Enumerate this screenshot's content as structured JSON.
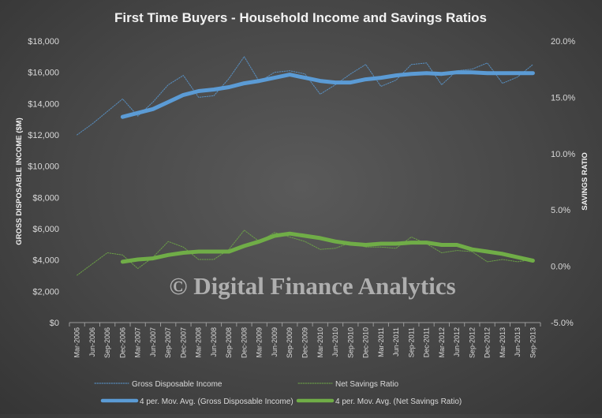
{
  "chart_data": {
    "type": "line",
    "title": "First Time Buyers - Household  Income and Savings Ratios",
    "ylabel": "GROSS DISPOSABLE INCOME ($M)",
    "y2label": "SAVINGS RATIO",
    "ylim": [
      0,
      18000
    ],
    "y2lim": [
      -5,
      20
    ],
    "yticks": [
      "$0",
      "$2,000",
      "$4,000",
      "$6,000",
      "$8,000",
      "$10,000",
      "$12,000",
      "$14,000",
      "$16,000",
      "$18,000"
    ],
    "y2ticks": [
      "-5.0%",
      "0.0%",
      "5.0%",
      "10.0%",
      "15.0%",
      "20.0%"
    ],
    "categories": [
      "Mar-2006",
      "Jun-2006",
      "Sep-2006",
      "Dec-2006",
      "Mar-2007",
      "Jun-2007",
      "Sep-2007",
      "Dec-2007",
      "Mar-2008",
      "Jun-2008",
      "Sep-2008",
      "Dec-2008",
      "Mar-2009",
      "Jun-2009",
      "Sep-2009",
      "Dec-2009",
      "Mar-2010",
      "Jun-2010",
      "Sep-2010",
      "Dec-2010",
      "Mar-2011",
      "Jun-2011",
      "Sep-2011",
      "Dec-2011",
      "Mar-2012",
      "Jun-2012",
      "Sep-2012",
      "Dec-2012",
      "Mar-2013",
      "Jun-2013",
      "Sep-2013"
    ],
    "series": [
      {
        "name": "Gross Disposable Income",
        "axis": "left",
        "style": "dotted",
        "color": "#5b9bd5",
        "values": [
          12000,
          12700,
          13500,
          14300,
          13200,
          14100,
          15200,
          15800,
          14400,
          14500,
          15600,
          17000,
          15400,
          16000,
          16100,
          15900,
          14600,
          15200,
          15900,
          16500,
          15100,
          15500,
          16500,
          16600,
          15200,
          16100,
          16200,
          16600,
          15300,
          15700,
          16500
        ]
      },
      {
        "name": "Net Savings Ratio",
        "axis": "right",
        "style": "dotted",
        "color": "#70ad47",
        "values": [
          -0.8,
          0.2,
          1.2,
          1.0,
          -0.2,
          0.8,
          2.2,
          1.7,
          0.6,
          0.6,
          1.5,
          3.2,
          2.2,
          3.0,
          2.6,
          2.2,
          1.5,
          1.6,
          2.1,
          1.7,
          1.7,
          1.6,
          2.6,
          2.0,
          1.2,
          1.4,
          1.3,
          0.4,
          0.6,
          0.4,
          0.6
        ]
      },
      {
        "name": "4 per. Mov. Avg. (Gross Disposable Income)",
        "axis": "left",
        "style": "thick",
        "color": "#5b9bd5",
        "values": [
          null,
          null,
          null,
          13150,
          13400,
          13650,
          14100,
          14550,
          14800,
          14900,
          15050,
          15300,
          15450,
          15650,
          15850,
          15650,
          15450,
          15350,
          15350,
          15550,
          15650,
          15800,
          15900,
          15950,
          15900,
          16000,
          16000,
          15950,
          15950,
          15950,
          15950
        ]
      },
      {
        "name": "4 per. Mov. Avg. (Net Savings Ratio)",
        "axis": "right",
        "style": "thick",
        "color": "#70ad47",
        "values": [
          null,
          null,
          null,
          0.4,
          0.6,
          0.7,
          1.0,
          1.2,
          1.3,
          1.3,
          1.3,
          1.8,
          2.2,
          2.7,
          2.9,
          2.7,
          2.5,
          2.2,
          2.0,
          1.9,
          2.0,
          2.0,
          2.1,
          2.1,
          1.9,
          1.9,
          1.5,
          1.3,
          1.1,
          0.8,
          0.5
        ]
      }
    ],
    "legend": "bottom",
    "grid": false
  },
  "watermark": "© Digital Finance Analytics"
}
